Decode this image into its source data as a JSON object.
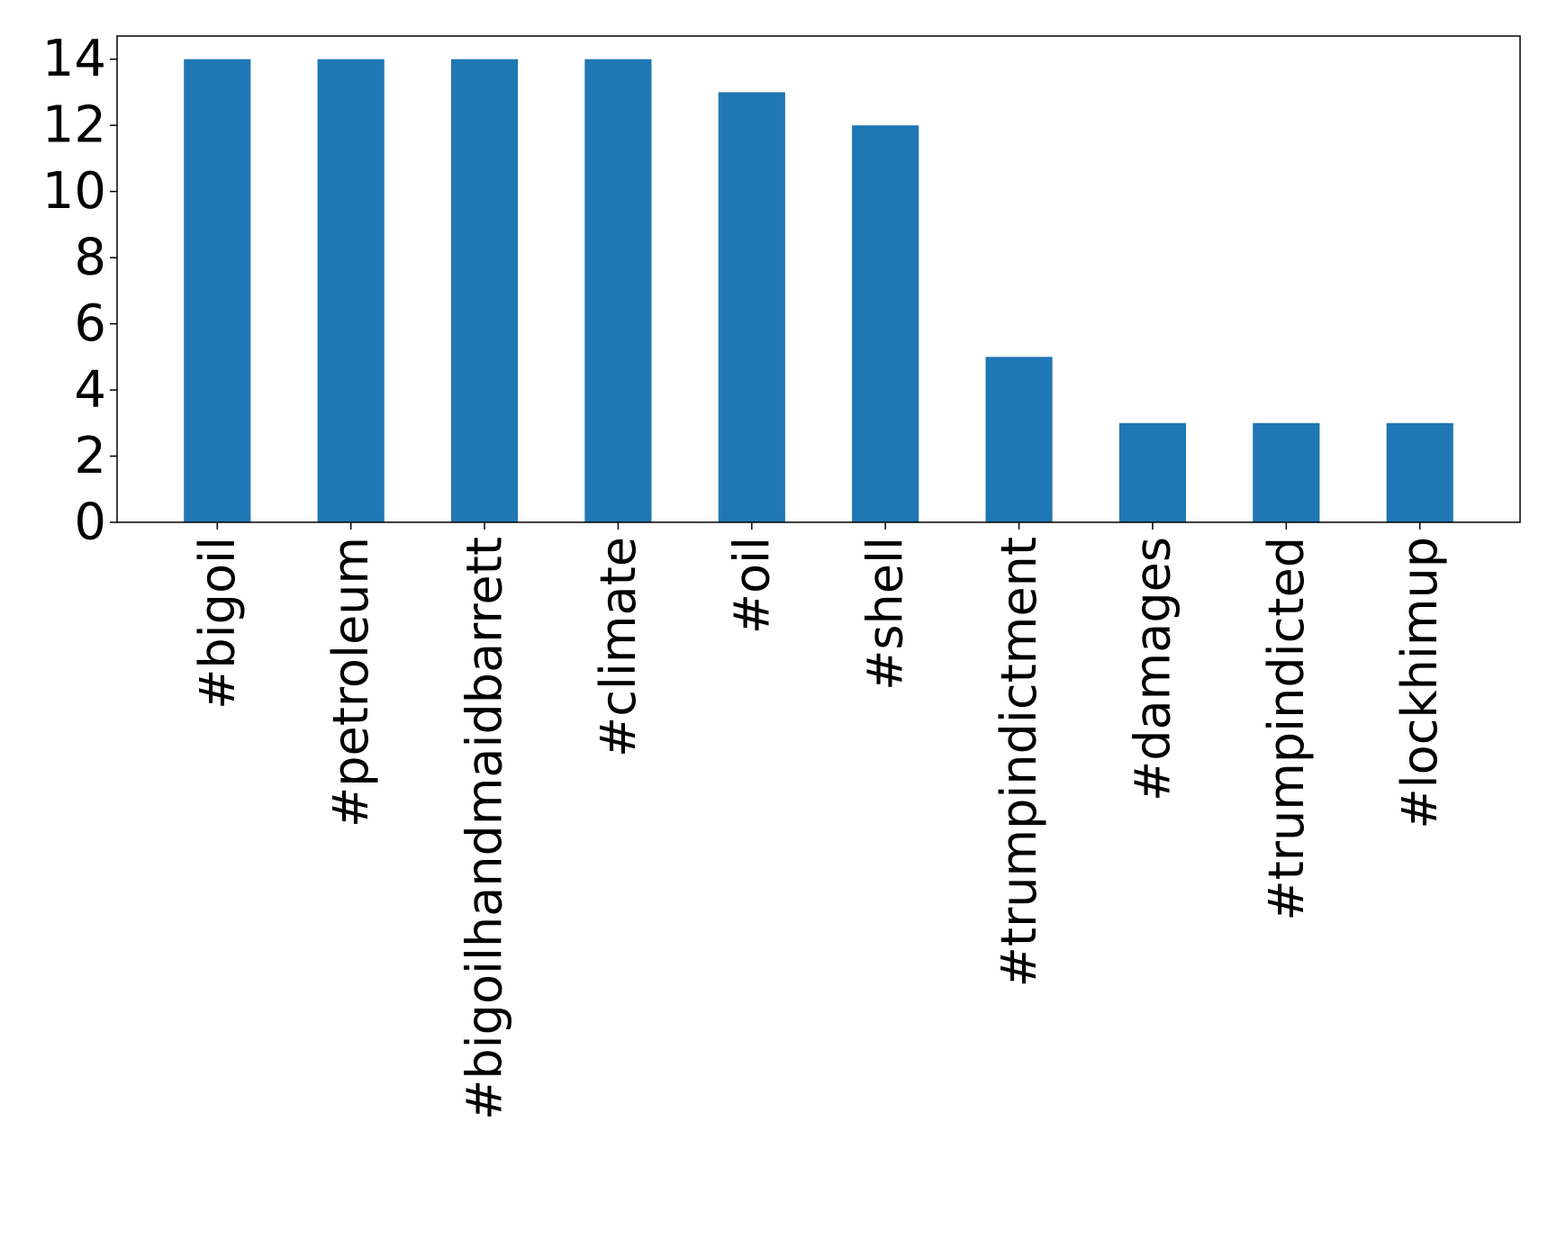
{
  "chart_data": {
    "type": "bar",
    "categories": [
      "#bigoil",
      "#petroleum",
      "#bigoilhandmaidbarrett",
      "#climate",
      "#oil",
      "#shell",
      "#trumpindictment",
      "#damages",
      "#trumpindicted",
      "#lockhimup"
    ],
    "values": [
      14,
      14,
      14,
      14,
      13,
      12,
      5,
      3,
      3,
      3
    ],
    "title": "",
    "xlabel": "",
    "ylabel": "",
    "ylim": [
      0,
      14.7
    ],
    "yticks": [
      0,
      2,
      4,
      6,
      8,
      10,
      12,
      14
    ],
    "grid": false,
    "bar_color": "#1f77b4"
  }
}
